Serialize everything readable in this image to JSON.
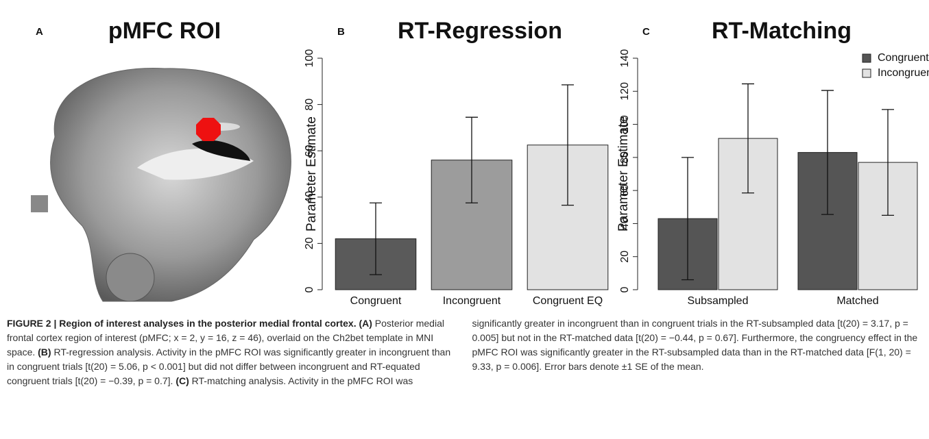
{
  "panel_a": {
    "label": "A",
    "title": "pMFC ROI"
  },
  "chart_data": [
    {
      "type": "bar",
      "panel_label": "B",
      "title": "RT-Regression",
      "y_label": "Parameter Estimate",
      "categories": [
        "Congruent",
        "Incongruent",
        "Congruent EQ"
      ],
      "values": [
        22,
        56,
        62.5
      ],
      "errors": [
        15.5,
        18.5,
        26
      ],
      "colors": [
        "#5a5a5a",
        "#9c9c9c",
        "#e2e2e2"
      ],
      "ylim": [
        0,
        100
      ],
      "yticks": [
        0,
        20,
        40,
        60,
        80,
        100
      ]
    },
    {
      "type": "grouped_bar",
      "panel_label": "C",
      "title": "RT-Matching",
      "y_label": "Parameter Estimate",
      "categories": [
        "Subsampled",
        "Matched"
      ],
      "series": [
        {
          "name": "Congruent",
          "color": "#555555",
          "values": [
            43,
            83
          ],
          "errors": [
            37,
            37.5
          ]
        },
        {
          "name": "Incongruent",
          "color": "#e2e2e2",
          "values": [
            91.5,
            77
          ],
          "errors": [
            33,
            32
          ]
        }
      ],
      "ylim": [
        0,
        140
      ],
      "yticks": [
        0,
        20,
        40,
        60,
        80,
        100,
        120,
        140
      ],
      "legend": "upper right"
    }
  ],
  "caption": [
    {
      "text": "FIGURE 2 | Region of interest analyses in the posterior medial frontal cortex.",
      "bold": true
    },
    {
      "text": " (A)",
      "bold": true
    },
    {
      "text": " Posterior medial frontal cortex region of interest (pMFC; x = 2, y = 16, z = 46), overlaid on the Ch2bet template in MNI space. ",
      "bold": false
    },
    {
      "text": "(B)",
      "bold": true
    },
    {
      "text": " RT-regression analysis. Activity in the pMFC ROI was significantly greater in incongruent than in congruent trials [t(20) = 5.06, p < 0.001] but did not differ between incongruent and RT-equated congruent trials [t(20) = −0.39, p = 0.7]. ",
      "bold": false
    },
    {
      "text": "(C)",
      "bold": true
    },
    {
      "text": " RT-matching analysis. Activity in the pMFC ROI was significantly greater in incongruent than in congruent trials in the RT-subsampled data [t(20) = 3.17, p = 0.005] but not in the RT-matched data [t(20) = −0.44, p = 0.67]. Furthermore, the congruency effect in the pMFC ROI was significantly greater in the RT-subsampled data than in the RT-matched data [F(1, 20) = 9.33, p = 0.006]. Error bars denote ±1 SE of the mean.",
      "bold": false
    }
  ]
}
